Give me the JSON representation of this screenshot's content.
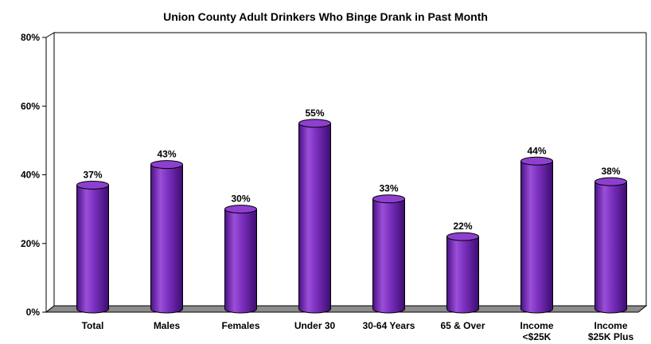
{
  "chart_data": {
    "type": "bar",
    "title": "Union County Adult Drinkers Who Binge Drank in Past Month",
    "categories": [
      [
        "Total"
      ],
      [
        "Males"
      ],
      [
        "Females"
      ],
      [
        "Under 30"
      ],
      [
        "30-64 Years"
      ],
      [
        "65 & Over"
      ],
      [
        "Income",
        "<$25K"
      ],
      [
        "Income",
        "$25K Plus"
      ]
    ],
    "values": [
      37,
      43,
      30,
      55,
      33,
      22,
      44,
      38
    ],
    "value_labels": [
      "37%",
      "43%",
      "30%",
      "55%",
      "33%",
      "22%",
      "44%",
      "38%"
    ],
    "ylim": [
      0,
      80
    ],
    "yticks": [
      0,
      20,
      40,
      60,
      80
    ],
    "ytick_labels": [
      "0%",
      "20%",
      "40%",
      "60%",
      "80%"
    ],
    "grid": false,
    "legend": "none",
    "colors": {
      "bar_body": "#7b2fbe",
      "bar_light": "#a964e0",
      "bar_dark": "#3c0d70",
      "bar_top": "#8e3fd0",
      "floor": "#8c8c8c"
    }
  }
}
